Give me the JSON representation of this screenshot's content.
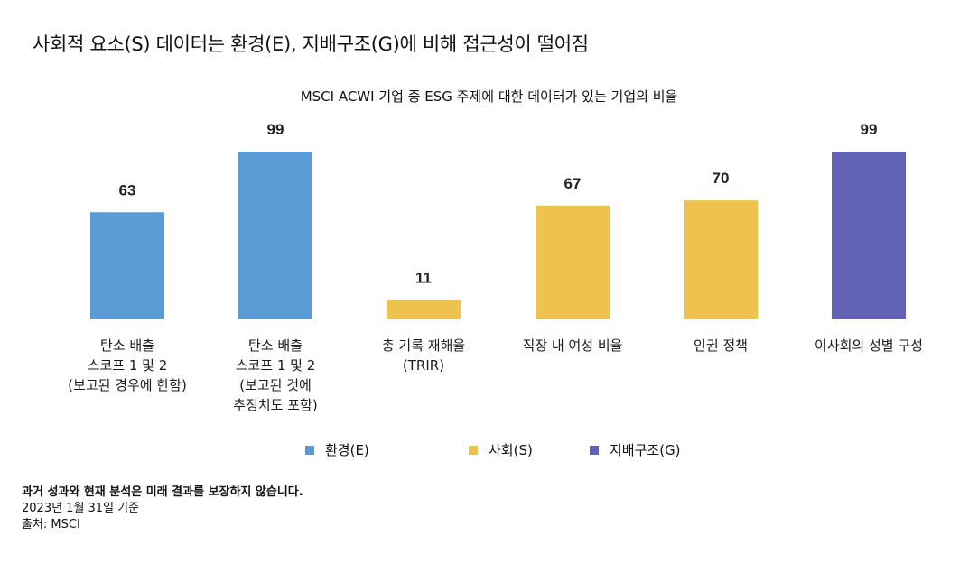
{
  "title": "사회적 요소(S) 데이터는 환경(E), 지배구조(G)에 비해 접근성이 떨어짐",
  "subtitle": "MSCI ACWI 기업 중 ESG 주제에 대한 데이터가 있는 기업의 비율",
  "colors": {
    "E": "#5b9bd5",
    "S": "#eec24f",
    "G": "#6262b4"
  },
  "chart_data": {
    "type": "bar",
    "title": "MSCI ACWI 기업 중 ESG 주제에 대한 데이터가 있는 기업의 비율",
    "ylim": [
      0,
      100
    ],
    "grid": false,
    "legend_position": "bottom",
    "categories": [
      "탄소 배출\n스코프 1 및 2\n(보고된 경우에 한함)",
      "탄소 배출\n스코프 1 및 2\n(보고된 것에\n추정치도 포함)",
      "총 기록 재해율\n(TRIR)",
      "직장 내 여성 비율",
      "인권 정책",
      "이사회의 성별 구성"
    ],
    "values": [
      63,
      99,
      11,
      67,
      70,
      99
    ],
    "groups": [
      "E",
      "E",
      "S",
      "S",
      "S",
      "G"
    ],
    "series": [
      {
        "name": "환경(E)",
        "key": "E"
      },
      {
        "name": "사회(S)",
        "key": "S"
      },
      {
        "name": "지배구조(G)",
        "key": "G"
      }
    ]
  },
  "footer": {
    "disclaimer": "과거 성과와 현재 분석은 미래 결과를 보장하지 않습니다.",
    "date": "2023년 1월  31일 기준",
    "source": "출처: MSCI"
  }
}
